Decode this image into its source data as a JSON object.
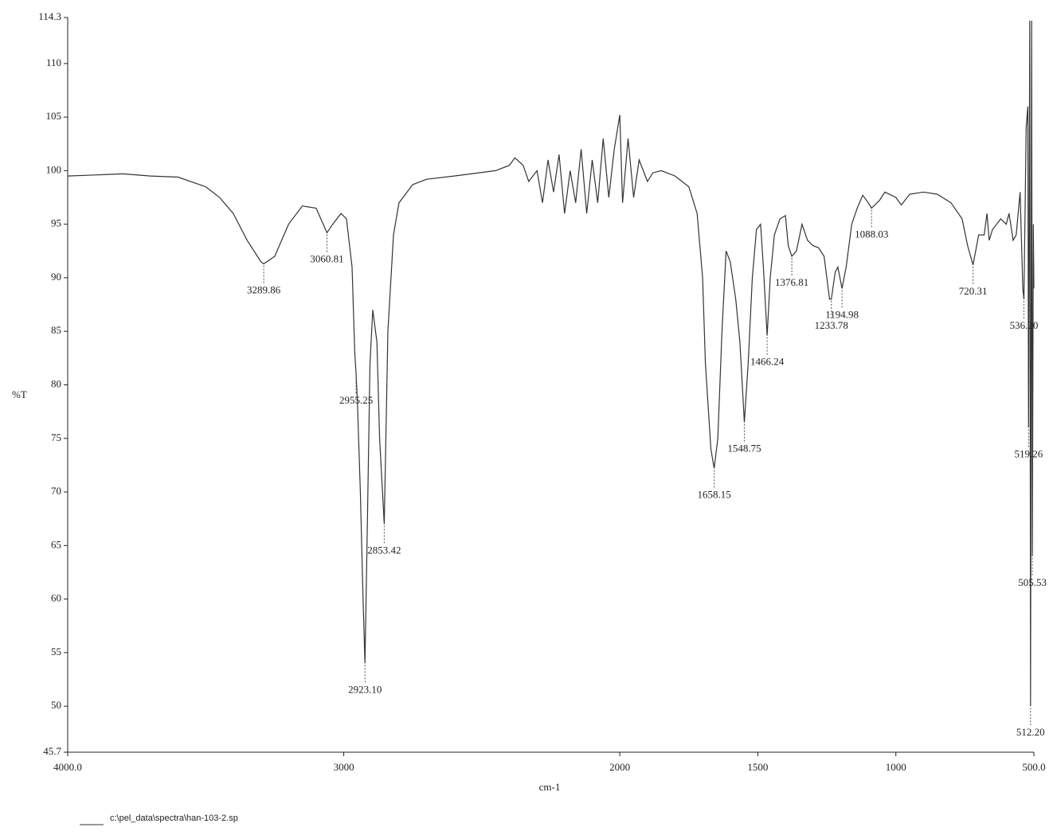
{
  "chart_data": {
    "type": "line",
    "x_label": "cm-1",
    "y_label": "%T",
    "xlim": [
      4000,
      500
    ],
    "ylim": [
      45.7,
      114.3
    ],
    "xticks": [
      {
        "value": 4000,
        "label": "4000.0"
      },
      3000,
      2000,
      1500,
      1000,
      {
        "value": 500,
        "label": "500.0"
      }
    ],
    "yticks": [
      114.3,
      110,
      105,
      100,
      95,
      90,
      85,
      80,
      75,
      70,
      65,
      60,
      55,
      50,
      45.7
    ],
    "color": "#333333",
    "file": "c:\\pel_data\\spectra\\han-103-2.sp",
    "x": [
      4000,
      3900,
      3800,
      3700,
      3600,
      3500,
      3450,
      3400,
      3350,
      3300,
      3289.86,
      3250,
      3200,
      3150,
      3100,
      3060.81,
      3040,
      3010,
      2990,
      2970,
      2960,
      2955.25,
      2950,
      2940,
      2930,
      2923.1,
      2915,
      2905,
      2895,
      2880,
      2870,
      2853.42,
      2840,
      2820,
      2800,
      2750,
      2700,
      2600,
      2450,
      2400,
      2380,
      2350,
      2330,
      2300,
      2280,
      2260,
      2240,
      2220,
      2200,
      2180,
      2160,
      2140,
      2120,
      2100,
      2080,
      2060,
      2040,
      2020,
      2000,
      1990,
      1970,
      1950,
      1930,
      1900,
      1880,
      1850,
      1800,
      1750,
      1720,
      1700,
      1690,
      1670,
      1658.15,
      1645,
      1630,
      1615,
      1600,
      1580,
      1565,
      1548.75,
      1535,
      1520,
      1505,
      1490,
      1480,
      1466.24,
      1455,
      1440,
      1420,
      1400,
      1390,
      1376.81,
      1360,
      1340,
      1320,
      1300,
      1280,
      1260,
      1240,
      1233.78,
      1220,
      1210,
      1194.98,
      1180,
      1160,
      1140,
      1120,
      1100,
      1088.03,
      1060,
      1040,
      1000,
      980,
      950,
      900,
      850,
      800,
      760,
      740,
      720.31,
      700,
      680,
      670,
      662,
      650,
      620,
      600,
      590,
      575,
      564,
      550,
      540,
      536.2,
      528,
      522,
      519.26,
      515,
      512.2,
      508,
      505.53,
      502,
      500
    ],
    "values": [
      99.5,
      99.6,
      99.7,
      99.5,
      99.4,
      98.5,
      97.5,
      96,
      93.5,
      91.5,
      91.3,
      92,
      95,
      96.7,
      96.5,
      94.2,
      95,
      96,
      95.5,
      91,
      83,
      81,
      78,
      70,
      60,
      54,
      66,
      82,
      87,
      84,
      75,
      67,
      85,
      94,
      97,
      98.7,
      99.2,
      99.5,
      100,
      100.5,
      101.2,
      100.5,
      99,
      100,
      97,
      101,
      98,
      101.5,
      96,
      100,
      97,
      102,
      96,
      101,
      97,
      103,
      97.5,
      102,
      105.2,
      97,
      103,
      97.5,
      101,
      99,
      99.8,
      100,
      99.5,
      98.5,
      96,
      90,
      82,
      74,
      72.2,
      75,
      85,
      92.5,
      91.5,
      88,
      84,
      76.5,
      82,
      90,
      94.5,
      95,
      91,
      84.6,
      90,
      94,
      95.5,
      95.8,
      93,
      92,
      92.5,
      95,
      93.5,
      93,
      92.8,
      92,
      88,
      88,
      90.5,
      91,
      89,
      91,
      95,
      96.5,
      97.7,
      97,
      96.5,
      97.2,
      98,
      97.5,
      96.8,
      97.8,
      98,
      97.8,
      97,
      95.5,
      93,
      91.2,
      94,
      94,
      96,
      93.5,
      94.5,
      95.5,
      95,
      96,
      93.5,
      94,
      98,
      89,
      88,
      104,
      106,
      76,
      114,
      50,
      114,
      64,
      95,
      89
    ],
    "peaks": [
      3289.86,
      3060.81,
      2955.25,
      {
        "value": 2923.1,
        "label": "2923.10"
      },
      2853.42,
      1658.15,
      1548.75,
      1466.24,
      1376.81,
      1233.78,
      1194.98,
      1088.03,
      720.31,
      {
        "value": 536.2,
        "label": "536.20"
      },
      519.26,
      505.53,
      {
        "value": 512.2,
        "label": "512.20"
      }
    ]
  }
}
